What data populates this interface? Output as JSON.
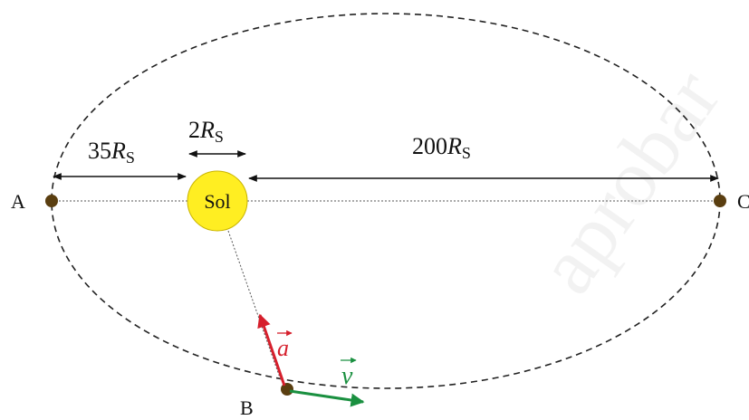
{
  "labels": {
    "point_a": "A",
    "point_b": "B",
    "point_c": "C",
    "sun": "Sol",
    "dist_perihelion": {
      "number": "35",
      "symbol": "R",
      "subscript": "S"
    },
    "sun_diameter": {
      "number": "2",
      "symbol": "R",
      "subscript": "S"
    },
    "dist_aphelion": {
      "number": "200",
      "symbol": "R",
      "subscript": "S"
    },
    "acceleration": "a",
    "velocity": "v",
    "watermark": "aprobar"
  }
}
